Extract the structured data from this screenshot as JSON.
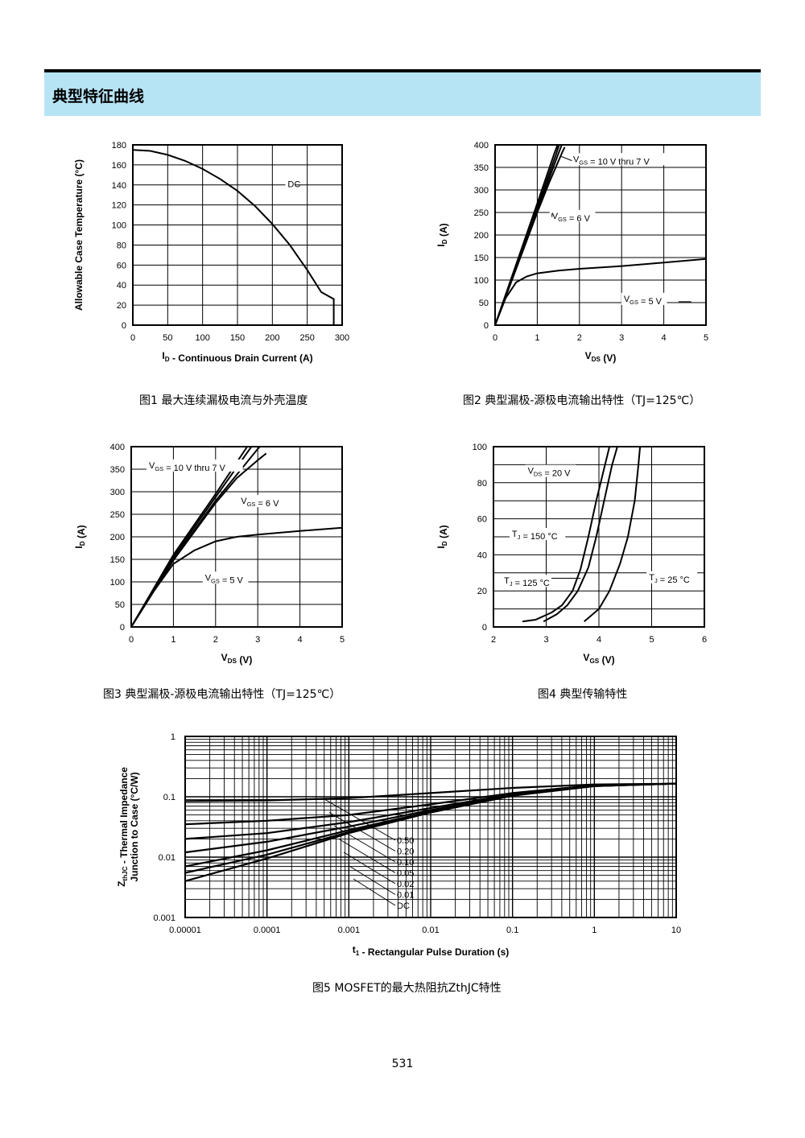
{
  "section_title": "典型特征曲线",
  "page_number": "531",
  "captions": {
    "fig1": "图1  最大连续漏极电流与外壳温度",
    "fig2": "图2  典型漏极-源极电流输出特性（TJ=125℃）",
    "fig3": "图3  典型漏极-源极电流输出特性（TJ=125℃）",
    "fig4": "图4  典型传输特性",
    "fig5": "图5 MOSFET的最大热阻抗ZthJC特性"
  },
  "chart_data": [
    {
      "id": "fig1",
      "type": "line",
      "xlabel": "ID - Continuous Drain Current (A)",
      "ylabel": "Allowable Case Temperature (°C)",
      "xlim": [
        0,
        300
      ],
      "ylim": [
        0,
        180
      ],
      "xticks": [
        0,
        50,
        100,
        150,
        200,
        250,
        300
      ],
      "yticks": [
        0,
        20,
        40,
        60,
        80,
        100,
        120,
        140,
        160,
        180
      ],
      "grid": true,
      "annotations": [
        {
          "text": "DC",
          "series": "DC"
        }
      ],
      "series": [
        {
          "name": "DC",
          "points": [
            [
              0,
              175
            ],
            [
              25,
              174
            ],
            [
              50,
              170
            ],
            [
              75,
              164
            ],
            [
              100,
              156
            ],
            [
              125,
              146
            ],
            [
              150,
              134
            ],
            [
              175,
              119
            ],
            [
              200,
              101
            ],
            [
              225,
              80
            ],
            [
              250,
              55
            ],
            [
              270,
              33
            ],
            [
              288,
              26
            ],
            [
              288,
              0
            ]
          ]
        }
      ]
    },
    {
      "id": "fig2",
      "type": "line",
      "xlabel": "VDS (V)",
      "ylabel": "ID (A)",
      "xlim": [
        0,
        5
      ],
      "ylim": [
        0,
        400
      ],
      "xticks": [
        0,
        1,
        2,
        3,
        4,
        5
      ],
      "yticks": [
        0,
        50,
        100,
        150,
        200,
        250,
        300,
        350,
        400
      ],
      "grid": true,
      "annotations": [
        {
          "text": "VGS = 10 V thru 7 V",
          "series": "10V thru 7V"
        },
        {
          "text": "VGS = 6 V",
          "series": "6V"
        },
        {
          "text": "VGS = 5 V",
          "series": "5V"
        }
      ],
      "series": [
        {
          "name": "10V thru 7V (a)",
          "points": [
            [
              0,
              0
            ],
            [
              0.5,
              135
            ],
            [
              1,
              270
            ],
            [
              1.4,
              380
            ],
            [
              1.48,
              400
            ]
          ]
        },
        {
          "name": "10V thru 7V (b)",
          "points": [
            [
              0,
              0
            ],
            [
              0.5,
              132
            ],
            [
              1,
              262
            ],
            [
              1.45,
              380
            ],
            [
              1.52,
              400
            ]
          ]
        },
        {
          "name": "10V thru 7V (c)",
          "points": [
            [
              0,
              0
            ],
            [
              0.5,
              128
            ],
            [
              1,
              255
            ],
            [
              1.5,
              380
            ],
            [
              1.58,
              400
            ]
          ]
        },
        {
          "name": "6V",
          "points": [
            [
              0,
              0
            ],
            [
              0.5,
              125
            ],
            [
              1,
              250
            ],
            [
              1.3,
              320
            ],
            [
              1.6,
              385
            ],
            [
              1.65,
              395
            ]
          ]
        },
        {
          "name": "5V",
          "points": [
            [
              0,
              0
            ],
            [
              0.25,
              60
            ],
            [
              0.5,
              95
            ],
            [
              0.75,
              108
            ],
            [
              1,
              115
            ],
            [
              1.5,
              121
            ],
            [
              2,
              125
            ],
            [
              3,
              131
            ],
            [
              4,
              139
            ],
            [
              5,
              147
            ]
          ]
        }
      ]
    },
    {
      "id": "fig3",
      "type": "line",
      "xlabel": "VDS (V)",
      "ylabel": "ID (A)",
      "xlim": [
        0,
        5
      ],
      "ylim": [
        0,
        400
      ],
      "xticks": [
        0,
        1,
        2,
        3,
        4,
        5
      ],
      "yticks": [
        0,
        50,
        100,
        150,
        200,
        250,
        300,
        350,
        400
      ],
      "grid": true,
      "annotations": [
        {
          "text": "VGS = 10 V thru 7 V",
          "series": "10V thru 7V"
        },
        {
          "text": "VGS = 6 V",
          "series": "6V"
        },
        {
          "text": "VGS = 5 V",
          "series": "5V"
        }
      ],
      "series": [
        {
          "name": "10V thru 7V (a)",
          "points": [
            [
              0,
              0
            ],
            [
              1,
              160
            ],
            [
              2,
              295
            ],
            [
              2.75,
              400
            ]
          ]
        },
        {
          "name": "10V thru 7V (b)",
          "points": [
            [
              0,
              0
            ],
            [
              1,
              155
            ],
            [
              2,
              288
            ],
            [
              2.85,
              400
            ]
          ]
        },
        {
          "name": "10V thru 7V (c)",
          "points": [
            [
              0,
              0
            ],
            [
              1,
              150
            ],
            [
              2,
              280
            ],
            [
              3,
              395
            ],
            [
              3.05,
              400
            ]
          ]
        },
        {
          "name": "6V",
          "points": [
            [
              0,
              0
            ],
            [
              1,
              148
            ],
            [
              2,
              275
            ],
            [
              2.5,
              330
            ],
            [
              3,
              370
            ],
            [
              3.2,
              385
            ]
          ]
        },
        {
          "name": "5V",
          "points": [
            [
              0,
              0
            ],
            [
              0.5,
              75
            ],
            [
              1,
              140
            ],
            [
              1.5,
              170
            ],
            [
              2,
              190
            ],
            [
              2.5,
              200
            ],
            [
              3,
              205
            ],
            [
              4,
              213
            ],
            [
              5,
              220
            ]
          ]
        }
      ]
    },
    {
      "id": "fig4",
      "type": "line",
      "xlabel": "VGS (V)",
      "ylabel": "ID (A)",
      "xlim": [
        2,
        6
      ],
      "ylim": [
        0,
        100
      ],
      "xticks": [
        2,
        3,
        4,
        5,
        6
      ],
      "yticks": [
        0,
        20,
        40,
        60,
        80,
        100
      ],
      "grid": true,
      "annotations": [
        {
          "text": "VDS = 20 V",
          "series": ""
        },
        {
          "text": "TJ = 150 °C",
          "series": "TJ = 150 °C"
        },
        {
          "text": "TJ = 125 °C",
          "series": "TJ = 125 °C"
        },
        {
          "text": "TJ = 25 °C",
          "series": "TJ = 25 °C"
        }
      ],
      "series": [
        {
          "name": "TJ = 150 °C",
          "points": [
            [
              2.55,
              3
            ],
            [
              2.8,
              4
            ],
            [
              3.1,
              8
            ],
            [
              3.3,
              12
            ],
            [
              3.5,
              20
            ],
            [
              3.65,
              32
            ],
            [
              3.8,
              50
            ],
            [
              3.95,
              70
            ],
            [
              4.1,
              88
            ],
            [
              4.2,
              100
            ]
          ]
        },
        {
          "name": "TJ = 125 °C",
          "points": [
            [
              2.95,
              3
            ],
            [
              3.2,
              7
            ],
            [
              3.4,
              12
            ],
            [
              3.6,
              20
            ],
            [
              3.8,
              33
            ],
            [
              3.95,
              50
            ],
            [
              4.1,
              70
            ],
            [
              4.25,
              90
            ],
            [
              4.35,
              100
            ]
          ]
        },
        {
          "name": "TJ = 25 °C",
          "points": [
            [
              3.72,
              3
            ],
            [
              4,
              10
            ],
            [
              4.2,
              20
            ],
            [
              4.4,
              35
            ],
            [
              4.55,
              50
            ],
            [
              4.68,
              70
            ],
            [
              4.75,
              90
            ],
            [
              4.78,
              100
            ]
          ]
        }
      ]
    },
    {
      "id": "fig5",
      "type": "line",
      "scale": "log-log",
      "xlabel": "t1 - Rectangular Pulse Duration (s)",
      "ylabel": "ZthJC - Thermal Impedance Junction to Case (°C/W)",
      "xlim": [
        1e-05,
        10
      ],
      "ylim": [
        0.001,
        1
      ],
      "xticks": [
        "0.00001",
        "0.0001",
        "0.001",
        "0.01",
        "0.1",
        "1",
        "10"
      ],
      "yticks": [
        "0.001",
        "0.01",
        "0.1",
        "1"
      ],
      "grid": true,
      "legend_labels": [
        "0.50",
        "0.20",
        "0.10",
        "0.05",
        "0.02",
        "0.01",
        "DC"
      ],
      "series": [
        {
          "name": "0.50",
          "points": [
            [
              1e-05,
              0.085
            ],
            [
              0.0001,
              0.087
            ],
            [
              0.001,
              0.095
            ],
            [
              0.01,
              0.115
            ],
            [
              0.1,
              0.14
            ],
            [
              1,
              0.16
            ],
            [
              10,
              0.165
            ]
          ]
        },
        {
          "name": "0.20",
          "points": [
            [
              1e-05,
              0.035
            ],
            [
              0.0001,
              0.04
            ],
            [
              0.001,
              0.05
            ],
            [
              0.01,
              0.075
            ],
            [
              0.1,
              0.115
            ],
            [
              1,
              0.155
            ],
            [
              10,
              0.165
            ]
          ]
        },
        {
          "name": "0.10",
          "points": [
            [
              1e-05,
              0.02
            ],
            [
              0.0001,
              0.025
            ],
            [
              0.001,
              0.038
            ],
            [
              0.01,
              0.065
            ],
            [
              0.1,
              0.11
            ],
            [
              1,
              0.153
            ],
            [
              10,
              0.165
            ]
          ]
        },
        {
          "name": "0.05",
          "points": [
            [
              1e-05,
              0.012
            ],
            [
              0.0001,
              0.018
            ],
            [
              0.001,
              0.032
            ],
            [
              0.01,
              0.06
            ],
            [
              0.1,
              0.108
            ],
            [
              1,
              0.152
            ],
            [
              10,
              0.165
            ]
          ]
        },
        {
          "name": "0.02",
          "points": [
            [
              1e-05,
              0.007
            ],
            [
              0.0001,
              0.013
            ],
            [
              0.001,
              0.028
            ],
            [
              0.01,
              0.057
            ],
            [
              0.1,
              0.106
            ],
            [
              1,
              0.151
            ],
            [
              10,
              0.165
            ]
          ]
        },
        {
          "name": "0.01",
          "points": [
            [
              1e-05,
              0.0055
            ],
            [
              0.0001,
              0.011
            ],
            [
              0.001,
              0.026
            ],
            [
              0.01,
              0.056
            ],
            [
              0.1,
              0.105
            ],
            [
              1,
              0.15
            ],
            [
              10,
              0.165
            ]
          ]
        },
        {
          "name": "DC",
          "points": [
            [
              1e-05,
              0.004
            ],
            [
              0.0001,
              0.0095
            ],
            [
              0.001,
              0.025
            ],
            [
              0.01,
              0.055
            ],
            [
              0.1,
              0.104
            ],
            [
              1,
              0.15
            ],
            [
              10,
              0.165
            ]
          ]
        }
      ]
    }
  ]
}
